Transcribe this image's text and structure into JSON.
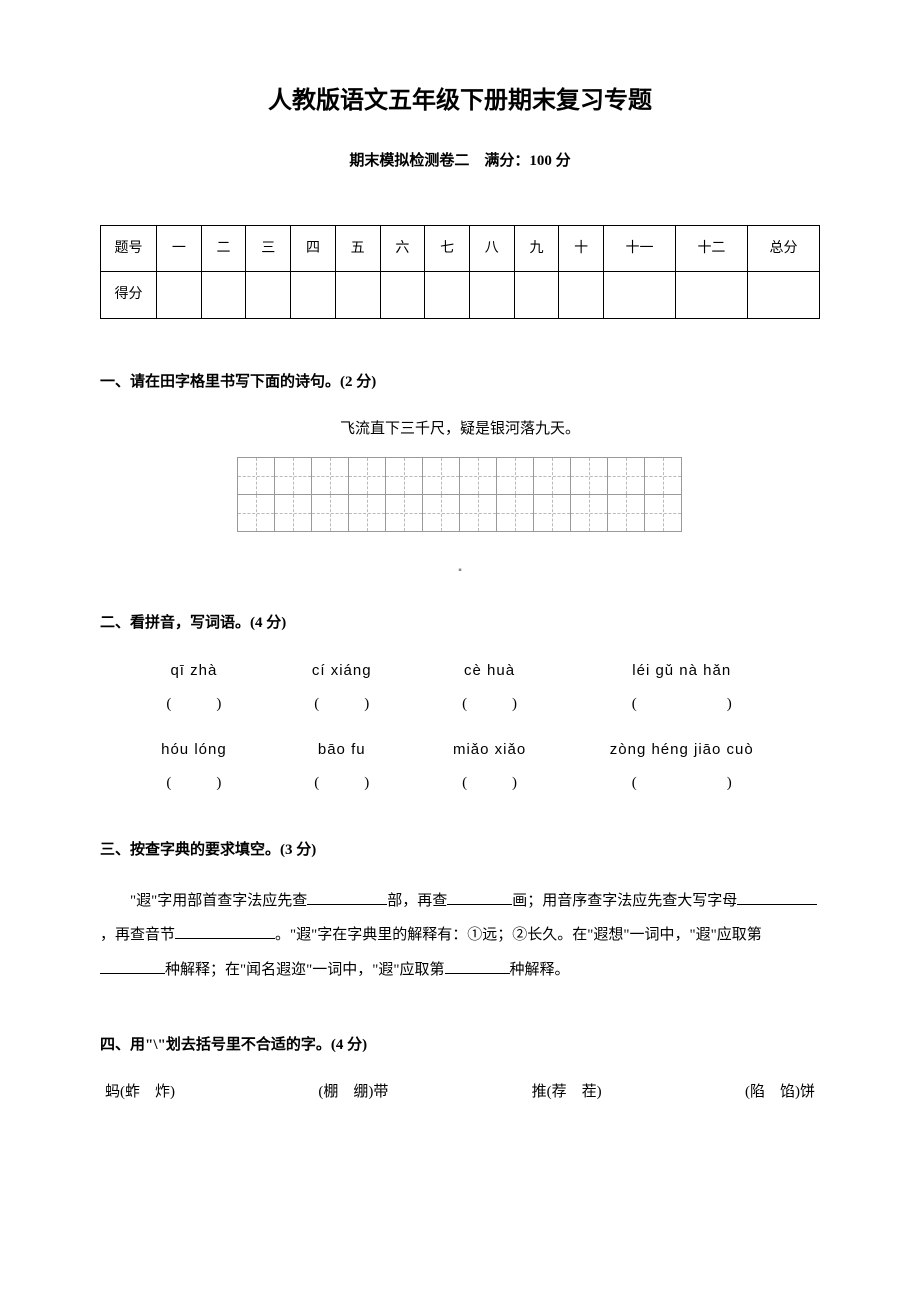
{
  "title": "人教版语文五年级下册期末复习专题",
  "subtitle": "期末模拟检测卷二　满分：100 分",
  "score_table": {
    "row1_label": "题号",
    "row2_label": "得分",
    "columns": [
      "一",
      "二",
      "三",
      "四",
      "五",
      "六",
      "七",
      "八",
      "九",
      "十",
      "十一",
      "十二",
      "总分"
    ]
  },
  "section1": {
    "heading": "一、请在田字格里书写下面的诗句。(2 分)",
    "poem": "飞流直下三千尺，疑是银河落九天。",
    "grid_cols": 12,
    "grid_rows": 2
  },
  "section2": {
    "heading": "二、看拼音，写词语。(4 分)",
    "rows": [
      [
        {
          "pinyin": "qī zhà",
          "wide": false
        },
        {
          "pinyin": "cí xiáng",
          "wide": false
        },
        {
          "pinyin": "cè huà",
          "wide": false
        },
        {
          "pinyin": "léi gǔ nà hǎn",
          "wide": true
        }
      ],
      [
        {
          "pinyin": "hóu lóng",
          "wide": false
        },
        {
          "pinyin": "bāo fu",
          "wide": false
        },
        {
          "pinyin": "miǎo xiǎo",
          "wide": false
        },
        {
          "pinyin": "zòng héng jiāo cuò",
          "wide": true
        }
      ]
    ],
    "paren_left": "(",
    "paren_right": ")",
    "paren_spacing_normal": "　　　",
    "paren_spacing_wide": "　　　　　　"
  },
  "section3": {
    "heading": "三、按查字典的要求填空。(3 分)",
    "text_parts": [
      "\"遐\"字用部首查字法应先查",
      "部，再查",
      "画；用音序查字法应先查大写字母",
      "，再查音节",
      "。\"遐\"字在字典里的解释有：①远；②长久。在\"遐想\"一词中，\"遐\"应取第",
      "种解释；在\"闻名遐迩\"一词中，\"遐\"应取第",
      "种解释。"
    ]
  },
  "section4": {
    "heading": "四、用\"\\\"划去括号里不合适的字。(4 分)",
    "items": [
      "蚂(蚱　炸)",
      "(棚　绷)带",
      "推(荐　茬)",
      "(陷　馅)饼"
    ]
  }
}
